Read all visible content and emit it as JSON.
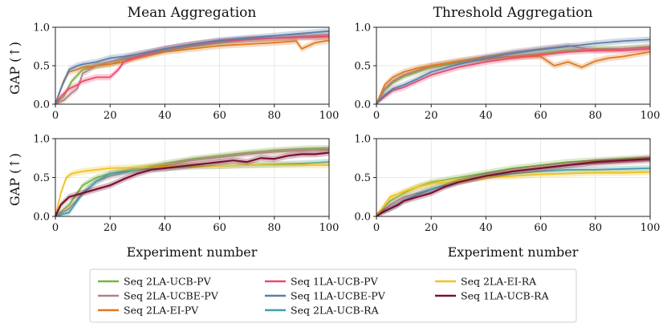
{
  "chart_data": {
    "type": "line",
    "x_range": [
      0,
      100
    ],
    "y_range": [
      0,
      1
    ],
    "x_ticks": [
      "0",
      "20",
      "40",
      "60",
      "80",
      "100"
    ],
    "y_ticks": [
      "0.0",
      "0.5",
      "1.0"
    ],
    "xlabel": "Experiment number",
    "ylabel": "GAP (↑)",
    "column_titles": [
      "Mean Aggregation",
      "Threshold Aggregation"
    ],
    "series_meta": [
      {
        "name": "Seq 2LA-UCB-PV",
        "color": "#7cb342"
      },
      {
        "name": "Seq 2LA-UCBE-PV",
        "color": "#b57f86"
      },
      {
        "name": "Seq 2LA-EI-PV",
        "color": "#e07a1f"
      },
      {
        "name": "Seq 1LA-UCB-PV",
        "color": "#f0486e"
      },
      {
        "name": "Seq 1LA-UCBE-PV",
        "color": "#5c7ea8"
      },
      {
        "name": "Seq 2LA-UCB-RA",
        "color": "#3fa0a8"
      },
      {
        "name": "Seq 2LA-EI-RA",
        "color": "#f2c21f"
      },
      {
        "name": "Seq 1LA-UCB-RA",
        "color": "#7a1030"
      }
    ],
    "legend_layout": "bottom-center, 3 columns",
    "panels": [
      {
        "id": "pv-mean",
        "title": "Mean Aggregation",
        "series": [
          {
            "name": "Seq 2LA-UCB-PV",
            "x": [
              0,
              3,
              6,
              10,
              15,
              20,
              25,
              30,
              40,
              50,
              60,
              70,
              80,
              90,
              100
            ],
            "y": [
              0,
              0.1,
              0.3,
              0.45,
              0.5,
              0.52,
              0.58,
              0.62,
              0.7,
              0.75,
              0.8,
              0.84,
              0.86,
              0.87,
              0.88
            ]
          },
          {
            "name": "Seq 2LA-UCBE-PV",
            "x": [
              0,
              3,
              6,
              8,
              10,
              15,
              20,
              25,
              30,
              40,
              50,
              60,
              70,
              80,
              90,
              100
            ],
            "y": [
              0,
              0.05,
              0.15,
              0.2,
              0.4,
              0.5,
              0.55,
              0.6,
              0.65,
              0.72,
              0.77,
              0.82,
              0.85,
              0.86,
              0.88,
              0.9
            ]
          },
          {
            "name": "Seq 2LA-EI-PV",
            "x": [
              0,
              3,
              5,
              8,
              10,
              15,
              20,
              25,
              30,
              40,
              50,
              60,
              70,
              80,
              88,
              90,
              95,
              100
            ],
            "y": [
              0,
              0.3,
              0.42,
              0.45,
              0.48,
              0.5,
              0.52,
              0.55,
              0.6,
              0.68,
              0.72,
              0.76,
              0.78,
              0.8,
              0.82,
              0.72,
              0.8,
              0.83
            ]
          },
          {
            "name": "Seq 1LA-UCB-PV",
            "x": [
              0,
              2,
              5,
              8,
              10,
              15,
              20,
              23,
              25,
              28,
              30,
              40,
              50,
              60,
              70,
              80,
              90,
              95,
              100
            ],
            "y": [
              0,
              0.1,
              0.2,
              0.25,
              0.3,
              0.35,
              0.35,
              0.45,
              0.55,
              0.6,
              0.62,
              0.72,
              0.78,
              0.82,
              0.84,
              0.86,
              0.87,
              0.87,
              0.88
            ]
          },
          {
            "name": "Seq 1LA-UCBE-PV",
            "x": [
              0,
              2,
              5,
              8,
              10,
              15,
              20,
              25,
              30,
              40,
              50,
              60,
              70,
              80,
              90,
              100
            ],
            "y": [
              0,
              0.2,
              0.45,
              0.5,
              0.52,
              0.55,
              0.6,
              0.62,
              0.65,
              0.72,
              0.78,
              0.83,
              0.86,
              0.89,
              0.92,
              0.95
            ]
          }
        ]
      },
      {
        "id": "pv-threshold",
        "title": "Threshold Aggregation",
        "series": [
          {
            "name": "Seq 2LA-UCB-PV",
            "x": [
              0,
              3,
              6,
              10,
              15,
              20,
              30,
              40,
              50,
              60,
              70,
              80,
              90,
              100
            ],
            "y": [
              0,
              0.18,
              0.28,
              0.36,
              0.42,
              0.48,
              0.54,
              0.58,
              0.62,
              0.66,
              0.7,
              0.72,
              0.72,
              0.75
            ]
          },
          {
            "name": "Seq 2LA-UCBE-PV",
            "x": [
              0,
              3,
              6,
              10,
              15,
              20,
              30,
              40,
              50,
              60,
              70,
              80,
              90,
              100
            ],
            "y": [
              0,
              0.2,
              0.3,
              0.38,
              0.44,
              0.5,
              0.56,
              0.62,
              0.68,
              0.72,
              0.76,
              0.7,
              0.72,
              0.74
            ]
          },
          {
            "name": "Seq 2LA-EI-PV",
            "x": [
              0,
              3,
              6,
              10,
              15,
              20,
              30,
              40,
              50,
              60,
              65,
              70,
              75,
              80,
              85,
              90,
              95,
              100
            ],
            "y": [
              0,
              0.25,
              0.35,
              0.42,
              0.47,
              0.5,
              0.56,
              0.6,
              0.62,
              0.62,
              0.5,
              0.55,
              0.48,
              0.56,
              0.6,
              0.62,
              0.65,
              0.68
            ]
          },
          {
            "name": "Seq 1LA-UCB-PV",
            "x": [
              0,
              3,
              6,
              10,
              15,
              20,
              30,
              40,
              50,
              60,
              70,
              80,
              90,
              100
            ],
            "y": [
              0,
              0.1,
              0.18,
              0.22,
              0.3,
              0.38,
              0.48,
              0.55,
              0.6,
              0.64,
              0.68,
              0.7,
              0.7,
              0.72
            ]
          },
          {
            "name": "Seq 1LA-UCBE-PV",
            "x": [
              0,
              3,
              6,
              10,
              15,
              20,
              30,
              40,
              50,
              60,
              70,
              80,
              90,
              100
            ],
            "y": [
              0,
              0.12,
              0.2,
              0.25,
              0.33,
              0.42,
              0.52,
              0.6,
              0.66,
              0.71,
              0.75,
              0.79,
              0.82,
              0.84
            ]
          }
        ]
      },
      {
        "id": "ra-mean",
        "title": "",
        "series": [
          {
            "name": "Seq 2LA-UCB-PV",
            "x": [
              0,
              5,
              10,
              15,
              20,
              30,
              40,
              50,
              60,
              70,
              80,
              90,
              100
            ],
            "y": [
              0,
              0.15,
              0.4,
              0.5,
              0.55,
              0.62,
              0.68,
              0.74,
              0.78,
              0.82,
              0.85,
              0.87,
              0.88
            ]
          },
          {
            "name": "Seq 2LA-UCBE-PV",
            "x": [
              0,
              5,
              10,
              15,
              20,
              30,
              40,
              50,
              60,
              70,
              80,
              90,
              100
            ],
            "y": [
              0,
              0.1,
              0.3,
              0.45,
              0.52,
              0.6,
              0.66,
              0.72,
              0.76,
              0.8,
              0.83,
              0.85,
              0.86
            ]
          },
          {
            "name": "Seq 2LA-UCB-RA",
            "x": [
              0,
              5,
              10,
              15,
              20,
              30,
              40,
              50,
              60,
              70,
              80,
              90,
              100
            ],
            "y": [
              0,
              0.05,
              0.3,
              0.45,
              0.55,
              0.6,
              0.62,
              0.64,
              0.65,
              0.66,
              0.67,
              0.68,
              0.7
            ]
          },
          {
            "name": "Seq 2LA-EI-RA",
            "x": [
              0,
              2,
              4,
              6,
              10,
              15,
              20,
              30,
              40,
              50,
              60,
              70,
              80,
              90,
              100
            ],
            "y": [
              0,
              0.3,
              0.5,
              0.55,
              0.58,
              0.6,
              0.62,
              0.63,
              0.64,
              0.65,
              0.65,
              0.66,
              0.66,
              0.66,
              0.66
            ]
          },
          {
            "name": "Seq 1LA-UCB-RA",
            "x": [
              0,
              2,
              5,
              10,
              15,
              20,
              25,
              30,
              35,
              40,
              45,
              50,
              55,
              60,
              65,
              70,
              75,
              80,
              85,
              90,
              95,
              100
            ],
            "y": [
              0,
              0.15,
              0.25,
              0.3,
              0.35,
              0.4,
              0.48,
              0.55,
              0.6,
              0.62,
              0.64,
              0.66,
              0.68,
              0.7,
              0.72,
              0.7,
              0.75,
              0.74,
              0.78,
              0.8,
              0.8,
              0.82
            ]
          }
        ]
      },
      {
        "id": "ra-threshold",
        "title": "",
        "series": [
          {
            "name": "Seq 2LA-UCB-PV",
            "x": [
              0,
              5,
              10,
              15,
              20,
              30,
              40,
              50,
              60,
              70,
              80,
              90,
              100
            ],
            "y": [
              0,
              0.2,
              0.3,
              0.38,
              0.44,
              0.5,
              0.56,
              0.62,
              0.66,
              0.7,
              0.72,
              0.74,
              0.76
            ]
          },
          {
            "name": "Seq 2LA-UCBE-PV",
            "x": [
              0,
              5,
              10,
              15,
              20,
              30,
              40,
              50,
              60,
              70,
              80,
              90,
              100
            ],
            "y": [
              0,
              0.15,
              0.25,
              0.3,
              0.35,
              0.45,
              0.52,
              0.58,
              0.62,
              0.66,
              0.68,
              0.7,
              0.72
            ]
          },
          {
            "name": "Seq 2LA-UCB-RA",
            "x": [
              0,
              5,
              10,
              15,
              20,
              30,
              40,
              50,
              60,
              70,
              80,
              90,
              100
            ],
            "y": [
              0,
              0.1,
              0.2,
              0.28,
              0.35,
              0.45,
              0.52,
              0.55,
              0.58,
              0.6,
              0.6,
              0.61,
              0.62
            ]
          },
          {
            "name": "Seq 2LA-EI-RA",
            "x": [
              0,
              5,
              10,
              15,
              20,
              30,
              40,
              50,
              60,
              70,
              80,
              90,
              100
            ],
            "y": [
              0,
              0.25,
              0.32,
              0.38,
              0.42,
              0.46,
              0.5,
              0.52,
              0.54,
              0.55,
              0.56,
              0.56,
              0.57
            ]
          },
          {
            "name": "Seq 1LA-UCB-RA",
            "x": [
              0,
              2,
              5,
              8,
              10,
              15,
              20,
              25,
              30,
              35,
              40,
              50,
              60,
              70,
              80,
              90,
              100
            ],
            "y": [
              0,
              0.05,
              0.1,
              0.15,
              0.2,
              0.25,
              0.3,
              0.38,
              0.44,
              0.48,
              0.52,
              0.58,
              0.62,
              0.66,
              0.7,
              0.72,
              0.74
            ]
          }
        ]
      }
    ]
  }
}
